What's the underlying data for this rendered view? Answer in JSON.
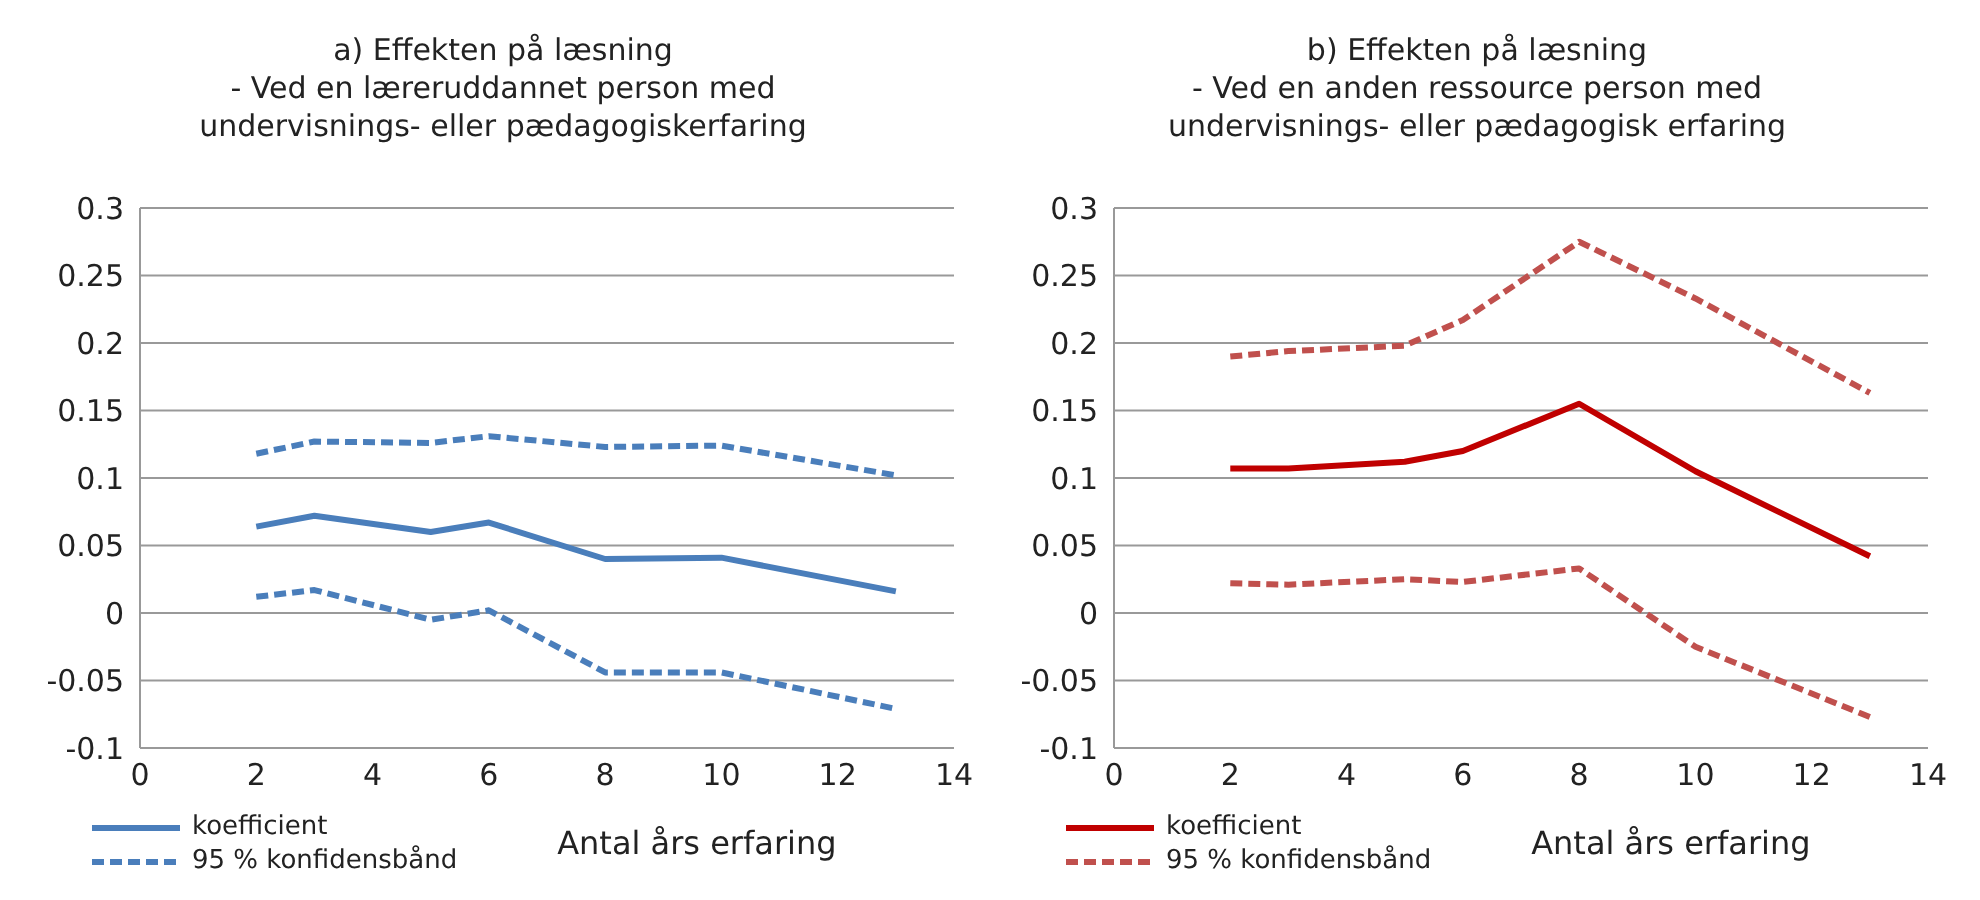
{
  "chart_data": [
    {
      "type": "line",
      "title": "a) Effekten på læsning\n- Ved en læreruddannet person med\nundervisnings- eller pædagogiskerfaring",
      "xlabel": "Antal års erfaring",
      "x": [
        2,
        3,
        5,
        6,
        8,
        10,
        13
      ],
      "xlim": [
        0,
        14
      ],
      "xticks": [
        0,
        2,
        4,
        6,
        8,
        10,
        12,
        14
      ],
      "ylim": [
        -0.1,
        0.3
      ],
      "yticks": [
        -0.1,
        -0.05,
        0,
        0.05,
        0.1,
        0.15,
        0.2,
        0.25,
        0.3
      ],
      "grid": "y",
      "legend": "bottom left",
      "marker": "none",
      "series": [
        {
          "name": "koefficient",
          "color": "#4a7ebb",
          "line_style": "solid",
          "values": [
            0.064,
            0.072,
            0.06,
            0.067,
            0.04,
            0.041,
            0.016
          ]
        },
        {
          "name": "95 % konfidensbånd",
          "color": "#4a7ebb",
          "line_style": "dashed",
          "values": [
            0.118,
            0.127,
            0.126,
            0.131,
            0.123,
            0.124,
            0.102
          ]
        },
        {
          "color": "#4a7ebb",
          "line_style": "dashed",
          "values": [
            0.012,
            0.017,
            -0.005,
            0.002,
            -0.044,
            -0.044,
            -0.071
          ]
        }
      ]
    },
    {
      "type": "line",
      "title": "b) Effekten på læsning\n- Ved en anden ressource person med\nundervisnings- eller pædagogisk erfaring",
      "xlabel": "Antal års erfaring",
      "x": [
        2,
        3,
        5,
        6,
        8,
        10,
        13
      ],
      "xlim": [
        0,
        14
      ],
      "xticks": [
        0,
        2,
        4,
        6,
        8,
        10,
        12,
        14
      ],
      "ylim": [
        -0.1,
        0.3
      ],
      "yticks": [
        -0.1,
        -0.05,
        0,
        0.05,
        0.1,
        0.15,
        0.2,
        0.25,
        0.3
      ],
      "grid": "y",
      "legend": "bottom left",
      "marker": "none",
      "series": [
        {
          "name": "koefficient",
          "color": "#c00000",
          "line_style": "solid",
          "values": [
            0.107,
            0.107,
            0.112,
            0.12,
            0.155,
            0.105,
            0.042
          ]
        },
        {
          "name": "95 % konfidensbånd",
          "color": "#c0504d",
          "line_style": "dashed",
          "values": [
            0.19,
            0.194,
            0.198,
            0.217,
            0.275,
            0.233,
            0.163
          ]
        },
        {
          "color": "#c0504d",
          "line_style": "dashed",
          "values": [
            0.022,
            0.021,
            0.025,
            0.023,
            0.033,
            -0.025,
            -0.077
          ]
        }
      ]
    }
  ]
}
